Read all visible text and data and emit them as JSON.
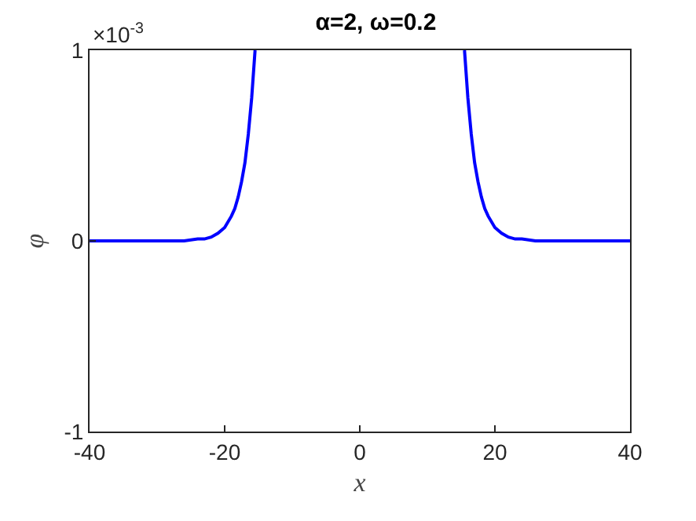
{
  "chart_data": {
    "type": "line",
    "title": "α=2, ω=0.2",
    "xlabel": "x",
    "ylabel": "φ",
    "x": [
      -40,
      -30,
      -26,
      -24,
      -23,
      -22,
      -21,
      -20,
      -19,
      -18.5,
      -18,
      -17.5,
      -17,
      -16.5,
      -16,
      -15.5,
      0,
      15.5,
      16,
      16.5,
      17,
      17.5,
      18,
      18.5,
      19,
      20,
      21,
      22,
      23,
      24,
      26,
      30,
      40
    ],
    "series": [
      {
        "color": "#0000ff",
        "values": [
          0,
          0,
          0,
          0.01,
          0.01,
          0.02,
          0.04,
          0.07,
          0.13,
          0.17,
          0.23,
          0.31,
          0.41,
          0.56,
          0.75,
          1,
          null,
          1,
          0.75,
          0.56,
          0.41,
          0.31,
          0.23,
          0.17,
          0.13,
          0.07,
          0.04,
          0.02,
          0.01,
          0.01,
          0,
          0,
          0
        ]
      }
    ],
    "xlim": [
      -40,
      40
    ],
    "xticks": [
      -40,
      -20,
      0,
      20,
      40
    ],
    "ylim": [
      -1,
      1
    ],
    "yticks": [
      -1,
      0,
      1
    ],
    "annotations": [
      "×10$^{-3}$"
    ],
    "grid": false,
    "marker": "none",
    "line_style": "solid"
  }
}
